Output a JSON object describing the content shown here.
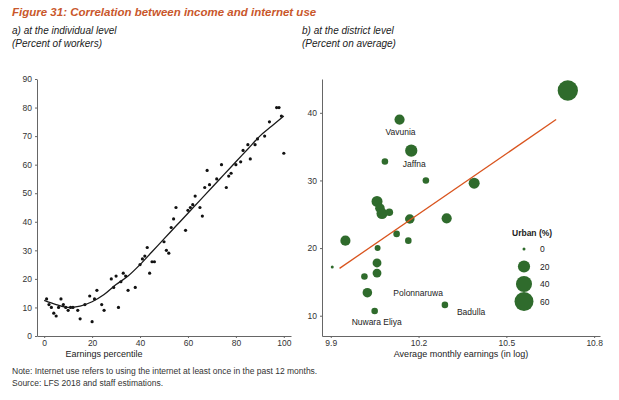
{
  "title": "Figure 31: Correlation between income and internet use",
  "note": "Note: Internet use refers to using the internet at least once in the past 12 months.",
  "source": "Source: LFS 2018 and staff estimations.",
  "chart_data": [
    {
      "type": "scatter",
      "title": "a) at the individual level",
      "subtitle": "(Percent of workers)",
      "x_label": "Earnings percentile",
      "xlim": [
        -3,
        103
      ],
      "ylim": [
        0,
        90
      ],
      "xticks": [
        0,
        20,
        40,
        60,
        80,
        100
      ],
      "yticks": [
        0,
        10,
        20,
        30,
        40,
        50,
        60,
        70,
        80,
        90
      ],
      "series": [
        {
          "type": "scatter",
          "color": "#111111",
          "marker": "circle",
          "x": [
            1,
            2,
            3,
            4,
            5,
            6,
            7,
            8,
            9,
            10,
            11,
            12,
            14,
            15,
            17,
            19,
            20,
            21,
            22,
            24,
            25,
            28,
            29,
            30,
            31,
            32,
            33,
            34,
            35,
            38,
            40,
            41,
            42,
            43,
            44,
            45,
            46,
            50,
            51,
            52,
            53,
            54,
            55,
            59,
            60,
            61,
            62,
            63,
            65,
            66,
            67,
            68,
            69,
            72,
            74,
            76,
            77,
            78,
            80,
            82,
            83,
            85,
            86,
            88,
            89,
            92,
            94,
            97,
            98,
            99,
            100
          ],
          "values": [
            13,
            11,
            10,
            8,
            7,
            10,
            13,
            11,
            10,
            9,
            10,
            10,
            9,
            6,
            11,
            14,
            5,
            13,
            16,
            11,
            9,
            20,
            17,
            21,
            10,
            19,
            22,
            21,
            16,
            17,
            25,
            27,
            28,
            31,
            22,
            26,
            26,
            33,
            30,
            29,
            38,
            41,
            45,
            37,
            44,
            45,
            46,
            49,
            45,
            42,
            52,
            58,
            53,
            55,
            60,
            52,
            56,
            57,
            60,
            61,
            65,
            67,
            62,
            67,
            69,
            70,
            75,
            80,
            80,
            77,
            64
          ]
        },
        {
          "type": "line",
          "color": "#1a1a1a",
          "line_style": "solid",
          "x": [
            0,
            5,
            10,
            15,
            20,
            25,
            30,
            35,
            40,
            45,
            50,
            55,
            60,
            65,
            70,
            75,
            80,
            85,
            90,
            95,
            100
          ],
          "values": [
            12.5,
            11,
            10,
            10.5,
            12,
            14.5,
            18,
            21,
            25,
            29.5,
            34,
            38.5,
            43,
            47.5,
            52,
            56.5,
            61,
            65.5,
            70,
            73.5,
            77
          ]
        }
      ]
    },
    {
      "type": "scatter",
      "title": "b) at the district level",
      "subtitle": "(Percent on average)",
      "x_label": "Average monthly earnings (in log)",
      "xlim": [
        9.87,
        10.82
      ],
      "ylim": [
        7,
        45
      ],
      "xticks": [
        9.9,
        10.2,
        10.5,
        10.8
      ],
      "yticks": [
        10,
        20,
        30,
        40
      ],
      "series": [
        {
          "type": "scatter",
          "color": "#2f6b2c",
          "marker": "circle",
          "x": [
            10.135,
            10.175,
            10.085,
            10.225,
            10.39,
            10.71,
            9.95,
            10.058,
            10.068,
            10.075,
            10.1,
            10.17,
            10.296,
            10.125,
            10.165,
            10.06,
            10.058,
            10.058,
            10.025,
            10.015,
            9.905,
            10.29,
            10.05
          ],
          "values": [
            39.0,
            34.4,
            32.8,
            30.0,
            29.6,
            43.3,
            21.1,
            26.9,
            25.9,
            25.1,
            25.3,
            24.3,
            24.4,
            22.1,
            21.1,
            20.0,
            17.8,
            16.3,
            13.4,
            15.8,
            17.2,
            11.6,
            10.7
          ],
          "size": [
            12,
            20,
            3,
            3,
            15,
            70,
            12,
            15,
            10,
            15,
            5,
            10,
            12,
            3,
            3,
            2,
            8,
            8,
            10,
            3,
            0,
            3,
            3
          ],
          "labels": [
            "Vavunia",
            "Jaffna",
            null,
            null,
            null,
            null,
            null,
            null,
            null,
            null,
            null,
            null,
            null,
            null,
            null,
            null,
            null,
            null,
            "Polonnaruwa",
            null,
            null,
            "Badulla",
            "Nuwara Eliya"
          ]
        },
        {
          "type": "line",
          "color": "#d9541e",
          "line_style": "solid",
          "x": [
            9.93,
            10.67
          ],
          "values": [
            17,
            39
          ]
        }
      ],
      "size_legend": {
        "title": "Urban (%)",
        "values": [
          0,
          20,
          40,
          60
        ]
      }
    }
  ]
}
